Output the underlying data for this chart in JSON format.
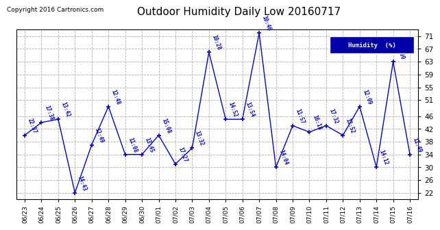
{
  "title": "Outdoor Humidity Daily Low 20160717",
  "copyright": "Copyright 2016 Cartronics.com",
  "legend_label": "Humidity  (%)",
  "ylabel_ticks": [
    22,
    26,
    30,
    34,
    38,
    42,
    46,
    51,
    55,
    59,
    63,
    67,
    71
  ],
  "ylim": [
    20,
    73
  ],
  "xlim": [
    -0.5,
    23.5
  ],
  "background_color": "#ffffff",
  "grid_color": "#b0b0b0",
  "line_color": "#0000cc",
  "annotation_color": "#0000cc",
  "title_fontsize": 11,
  "points": [
    {
      "x": 0,
      "label": "06/23",
      "time": "22:37",
      "value": 40
    },
    {
      "x": 1,
      "label": "06/24",
      "time": "17:38",
      "value": 44
    },
    {
      "x": 2,
      "label": "06/25",
      "time": "13:42",
      "value": 45
    },
    {
      "x": 3,
      "label": "06/26",
      "time": "14:43",
      "value": 22
    },
    {
      "x": 4,
      "label": "06/27",
      "time": "12:49",
      "value": 37
    },
    {
      "x": 5,
      "label": "06/28",
      "time": "12:48",
      "value": 49
    },
    {
      "x": 6,
      "label": "06/29",
      "time": "11:08",
      "value": 34
    },
    {
      "x": 7,
      "label": "06/30",
      "time": "13:45",
      "value": 34
    },
    {
      "x": 8,
      "label": "07/01",
      "time": "15:08",
      "value": 40
    },
    {
      "x": 9,
      "label": "07/02",
      "time": "17:27",
      "value": 31
    },
    {
      "x": 10,
      "label": "07/03",
      "time": "13:32",
      "value": 36
    },
    {
      "x": 11,
      "label": "07/04",
      "time": "10:28",
      "value": 66
    },
    {
      "x": 12,
      "label": "07/05",
      "time": "14:52",
      "value": 45
    },
    {
      "x": 13,
      "label": "07/06",
      "time": "13:54",
      "value": 45
    },
    {
      "x": 14,
      "label": "07/07",
      "time": "10:46",
      "value": 72
    },
    {
      "x": 15,
      "label": "07/08",
      "time": "14:04",
      "value": 30
    },
    {
      "x": 16,
      "label": "07/09",
      "time": "11:57",
      "value": 43
    },
    {
      "x": 17,
      "label": "07/10",
      "time": "16:18",
      "value": 41
    },
    {
      "x": 18,
      "label": "07/11",
      "time": "17:32",
      "value": 43
    },
    {
      "x": 19,
      "label": "07/12",
      "time": "13:52",
      "value": 40
    },
    {
      "x": 20,
      "label": "07/13",
      "time": "12:09",
      "value": 49
    },
    {
      "x": 21,
      "label": "07/14",
      "time": "14:12",
      "value": 30
    },
    {
      "x": 22,
      "label": "07/15",
      "time": "00:00",
      "value": 63
    },
    {
      "x": 23,
      "label": "07/16",
      "time": "11:49",
      "value": 34
    }
  ]
}
